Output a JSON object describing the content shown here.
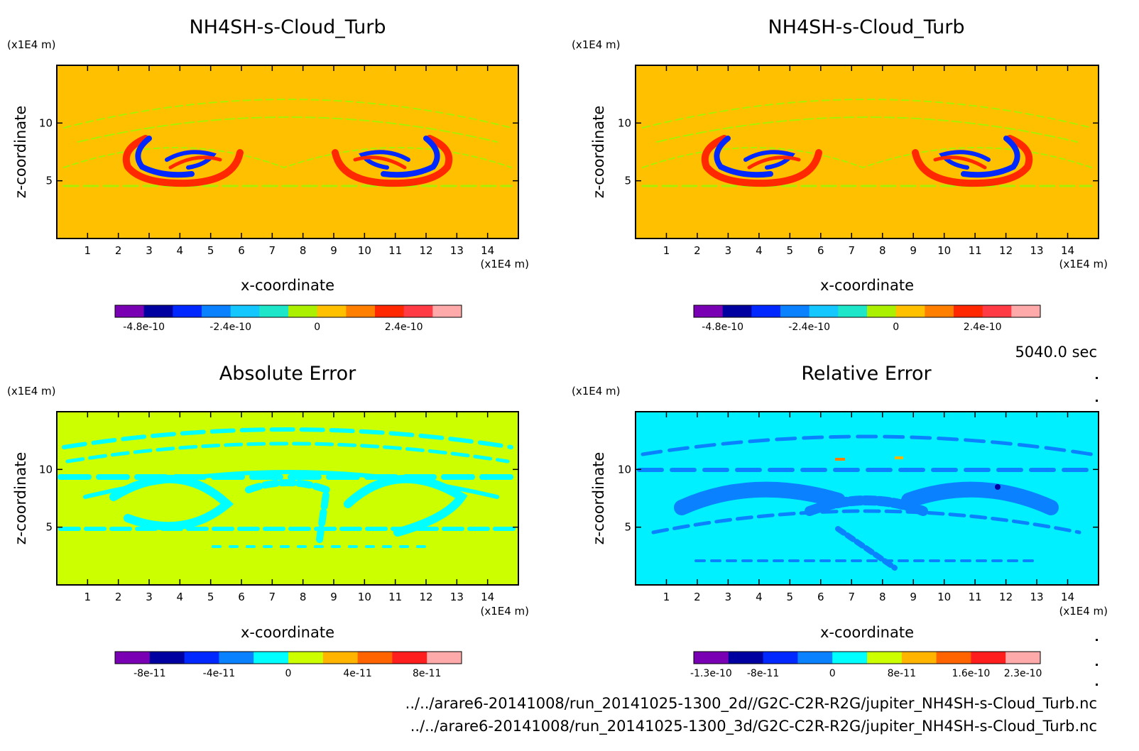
{
  "chart_data": [
    {
      "type": "heatmap",
      "title": "NH4SH-s-Cloud_Turb",
      "xlabel": "x-coordinate",
      "ylabel": "z-coordinate",
      "x_unit": "(x1E4 m)",
      "y_unit": "(x1E4 m)",
      "xlim": [
        0,
        15
      ],
      "ylim": [
        0,
        15
      ],
      "x_ticks": [
        "1",
        "2",
        "3",
        "4",
        "5",
        "6",
        "7",
        "8",
        "9",
        "10",
        "11",
        "12",
        "13",
        "14"
      ],
      "y_ticks": [
        "5",
        "10"
      ],
      "background_color": "#ffc000",
      "colorbar": {
        "colors": [
          "#7a00b4",
          "#0000a0",
          "#0028ff",
          "#0a82ff",
          "#14c8ff",
          "#1ee6c8",
          "#aaf000",
          "#ffc000",
          "#ff8000",
          "#ff2800",
          "#ff3c46",
          "#ffaaaa"
        ],
        "tick_labels": [
          "-4.8e-10",
          "-2.4e-10",
          "0",
          "2.4e-10"
        ]
      }
    },
    {
      "type": "heatmap",
      "title": "NH4SH-s-Cloud_Turb",
      "xlabel": "x-coordinate",
      "ylabel": "z-coordinate",
      "x_unit": "(x1E4 m)",
      "y_unit": "(x1E4 m)",
      "xlim": [
        0,
        15
      ],
      "ylim": [
        0,
        15
      ],
      "x_ticks": [
        "1",
        "2",
        "3",
        "4",
        "5",
        "6",
        "7",
        "8",
        "9",
        "10",
        "11",
        "12",
        "13",
        "14"
      ],
      "y_ticks": [
        "5",
        "10"
      ],
      "background_color": "#ffc000",
      "colorbar": {
        "colors": [
          "#7a00b4",
          "#0000a0",
          "#0028ff",
          "#0a82ff",
          "#14c8ff",
          "#1ee6c8",
          "#aaf000",
          "#ffc000",
          "#ff8000",
          "#ff2800",
          "#ff3c46",
          "#ffaaaa"
        ],
        "tick_labels": [
          "-4.8e-10",
          "-2.4e-10",
          "0",
          "2.4e-10"
        ]
      }
    },
    {
      "type": "heatmap",
      "title": "Absolute Error",
      "xlabel": "x-coordinate",
      "ylabel": "z-coordinate",
      "x_unit": "(x1E4 m)",
      "y_unit": "(x1E4 m)",
      "xlim": [
        0,
        15
      ],
      "ylim": [
        0,
        15
      ],
      "x_ticks": [
        "1",
        "2",
        "3",
        "4",
        "5",
        "6",
        "7",
        "8",
        "9",
        "10",
        "11",
        "12",
        "13",
        "14"
      ],
      "y_ticks": [
        "5",
        "10"
      ],
      "background_color": "#ccff00",
      "colorbar": {
        "colors": [
          "#7a00b4",
          "#0000a0",
          "#0028ff",
          "#0a82ff",
          "#00ffff",
          "#ccff00",
          "#ffb400",
          "#ff6400",
          "#ff1e1e",
          "#ffaaaa"
        ],
        "tick_labels": [
          "-8e-11",
          "-4e-11",
          "0",
          "4e-11",
          "8e-11"
        ]
      }
    },
    {
      "type": "heatmap",
      "title": "Relative Error",
      "xlabel": "x-coordinate",
      "ylabel": "z-coordinate",
      "x_unit": "(x1E4 m)",
      "y_unit": "(x1E4 m)",
      "xlim": [
        0,
        15
      ],
      "ylim": [
        0,
        15
      ],
      "x_ticks": [
        "1",
        "2",
        "3",
        "4",
        "5",
        "6",
        "7",
        "8",
        "9",
        "10",
        "11",
        "12",
        "13",
        "14"
      ],
      "y_ticks": [
        "5",
        "10"
      ],
      "background_color": "#00f0ff",
      "colorbar": {
        "colors": [
          "#7a00b4",
          "#0000a0",
          "#0028ff",
          "#0a82ff",
          "#00ffff",
          "#ccff00",
          "#ffb400",
          "#ff6400",
          "#ff1e1e",
          "#ffaaaa"
        ],
        "tick_labels": [
          "-1.3e-10",
          "-8e-11",
          "0",
          "8e-11",
          "1.6e-10",
          "2.3e-10"
        ]
      }
    }
  ],
  "time_label": "5040.0 sec",
  "file_lines": [
    "../../arare6-20141008/run_20141025-1300_2d//G2C-C2R-R2G/jupiter_NH4SH-s-Cloud_Turb.nc",
    "../../arare6-20141008/run_20141025-1300_3d/G2C-C2R-R2G/jupiter_NH4SH-s-Cloud_Turb.nc"
  ]
}
